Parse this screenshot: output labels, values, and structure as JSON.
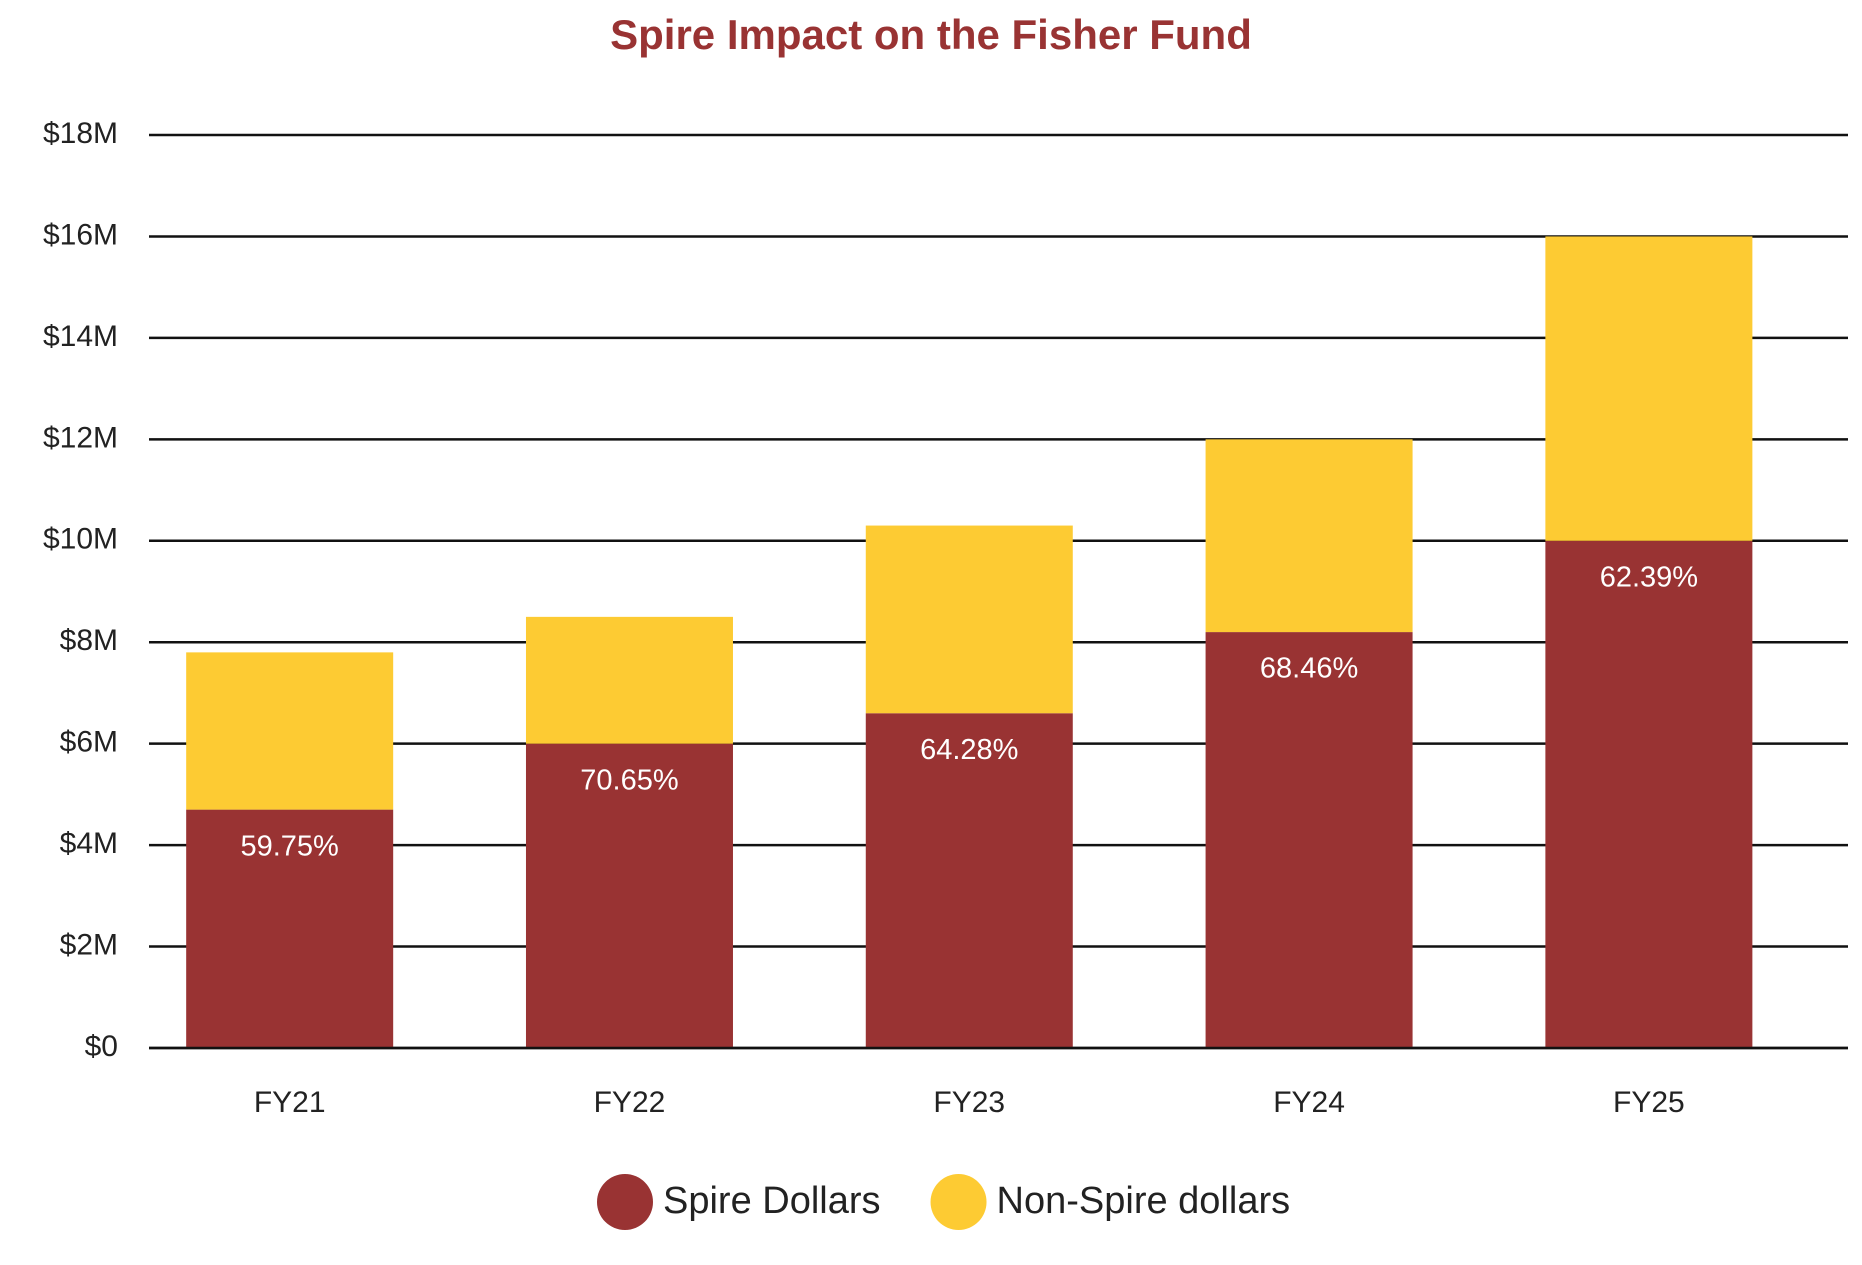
{
  "chart_data": {
    "type": "stacked_bar",
    "title": "Spire Impact on the Fisher Fund",
    "categories": [
      "FY21",
      "FY22",
      "FY23",
      "FY24",
      "FY25"
    ],
    "series": [
      {
        "name": "Spire Dollars",
        "color": "#993333",
        "values": [
          4700000,
          6000000,
          6600000,
          8200000,
          10000000
        ]
      },
      {
        "name": "Non-Spire dollars",
        "color": "#fdcb33",
        "values": [
          3100000,
          2500000,
          3700000,
          3800000,
          6000000
        ]
      }
    ],
    "annotations": [
      "59.75%",
      "70.65%",
      "64.28%",
      "68.46%",
      "62.39%"
    ],
    "ylim": [
      0,
      18000000
    ],
    "yticks": [
      {
        "value": 0,
        "label": "$0"
      },
      {
        "value": 2000000,
        "label": "$2M"
      },
      {
        "value": 4000000,
        "label": "$4M"
      },
      {
        "value": 6000000,
        "label": "$6M"
      },
      {
        "value": 8000000,
        "label": "$8M"
      },
      {
        "value": 10000000,
        "label": "$10M"
      },
      {
        "value": 12000000,
        "label": "$12M"
      },
      {
        "value": 14000000,
        "label": "$14M"
      },
      {
        "value": 16000000,
        "label": "$16M"
      },
      {
        "value": 18000000,
        "label": "$18M"
      }
    ],
    "grid": true,
    "legend": "bottom"
  }
}
